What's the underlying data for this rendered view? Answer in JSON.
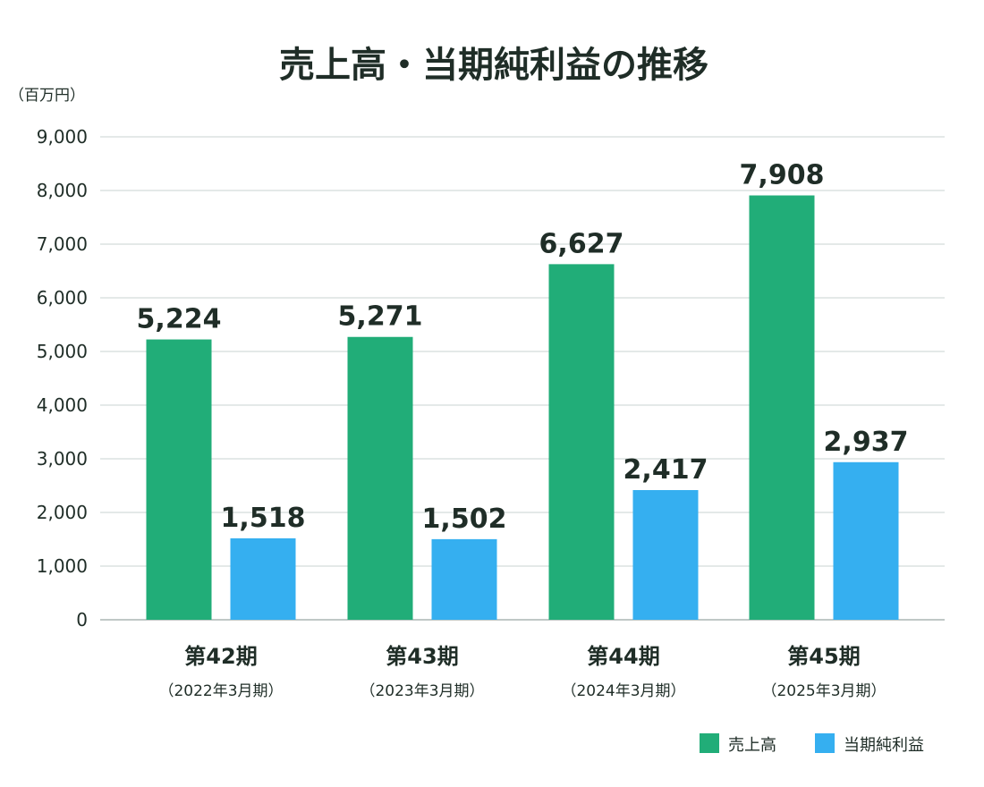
{
  "chart_data": {
    "type": "bar",
    "title": "売上高・当期純利益の推移",
    "unit_label": "（百万円）",
    "categories": [
      "第42期",
      "第43期",
      "第44期",
      "第45期"
    ],
    "category_sublabels": [
      "（2022年3月期）",
      "（2023年3月期）",
      "（2024年3月期）",
      "（2025年3月期）"
    ],
    "series": [
      {
        "name": "売上高",
        "color": "#21ad78",
        "values": [
          5224,
          5271,
          6627,
          7908
        ]
      },
      {
        "name": "当期純利益",
        "color": "#35aff0",
        "values": [
          1518,
          1502,
          2417,
          2937
        ]
      }
    ],
    "data_labels": [
      [
        "5,224",
        "5,271",
        "6,627",
        "7,908"
      ],
      [
        "1,518",
        "1,502",
        "2,417",
        "2,937"
      ]
    ],
    "ylim": [
      0,
      9000
    ],
    "yticks": [
      0,
      1000,
      2000,
      3000,
      4000,
      5000,
      6000,
      7000,
      8000,
      9000
    ],
    "ytick_labels": [
      "0",
      "1,000",
      "2,000",
      "3,000",
      "4,000",
      "5,000",
      "6,000",
      "7,000",
      "8,000",
      "9,000"
    ],
    "grid": true,
    "legend_position": "bottom-right"
  }
}
